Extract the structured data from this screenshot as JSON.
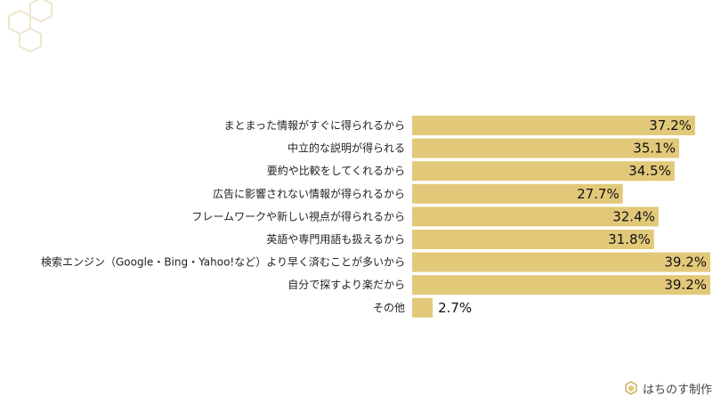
{
  "chart_data": {
    "type": "bar",
    "orientation": "horizontal",
    "categories": [
      "まとまった情報がすぐに得られるから",
      "中立的な説明が得られる",
      "要約や比較をしてくれるから",
      "広告に影響されない情報が得られるから",
      "フレームワークや新しい視点が得られるから",
      "英語や専門用語も扱えるから",
      "検索エンジン（Google・Bing・Yahoo!など）より早く済むことが多いから",
      "自分で探すより楽だから",
      "その他"
    ],
    "values": [
      37.2,
      35.1,
      34.5,
      27.7,
      32.4,
      31.8,
      39.2,
      39.2,
      2.7
    ],
    "value_labels": [
      "37.2%",
      "35.1%",
      "34.5%",
      "27.7%",
      "32.4%",
      "31.8%",
      "39.2%",
      "39.2%",
      "2.7%"
    ],
    "xlim": [
      0,
      39.2
    ],
    "grid": false,
    "bar_color": "#e2c97a"
  },
  "brand": {
    "name": "はちのす制作",
    "icon": "honeycomb-icon"
  }
}
